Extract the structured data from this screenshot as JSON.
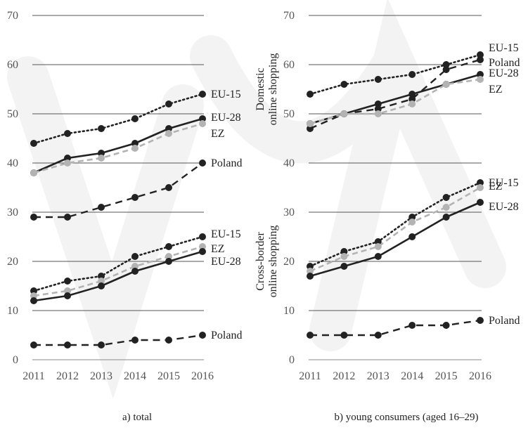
{
  "chart_data": [
    {
      "type": "line",
      "panel": "left",
      "caption": "a) total",
      "x": [
        2011,
        2012,
        2013,
        2014,
        2015,
        2016
      ],
      "ylim": [
        0,
        70
      ],
      "yticks": [
        0,
        10,
        20,
        30,
        40,
        50,
        60,
        70
      ],
      "grid": true,
      "group_labels": [],
      "series": [
        {
          "label": "EU-15",
          "group": "domestic",
          "style": "dotted",
          "values": [
            44,
            46,
            47,
            49,
            52,
            54
          ]
        },
        {
          "label": "EU-28",
          "group": "domestic",
          "style": "solid",
          "values": [
            38,
            41,
            42,
            44,
            47,
            49
          ]
        },
        {
          "label": "EZ",
          "group": "domestic",
          "style": "grey-dashed",
          "values": [
            38,
            40,
            41,
            43,
            46,
            48
          ]
        },
        {
          "label": "Poland",
          "group": "domestic",
          "style": "dashed",
          "values": [
            29,
            29,
            31,
            33,
            35,
            40
          ]
        },
        {
          "label": "EU-15",
          "group": "cross-border",
          "style": "dotted",
          "values": [
            14,
            16,
            17,
            21,
            23,
            25
          ]
        },
        {
          "label": "EZ",
          "group": "cross-border",
          "style": "grey-dashed",
          "values": [
            13,
            14,
            16,
            19,
            21,
            23
          ]
        },
        {
          "label": "EU-28",
          "group": "cross-border",
          "style": "solid",
          "values": [
            12,
            13,
            15,
            18,
            20,
            22
          ]
        },
        {
          "label": "Poland",
          "group": "cross-border",
          "style": "dashed",
          "values": [
            3,
            3,
            3,
            4,
            4,
            5
          ]
        }
      ]
    },
    {
      "type": "line",
      "panel": "right",
      "caption": "b) young consumers (aged 16–29)",
      "x": [
        2011,
        2012,
        2013,
        2014,
        2015,
        2016
      ],
      "ylim": [
        0,
        70
      ],
      "yticks": [
        0,
        10,
        20,
        30,
        40,
        50,
        60,
        70
      ],
      "grid": true,
      "group_labels": [
        "Domestic online shopping",
        "Cross-border online shopping"
      ],
      "series": [
        {
          "label": "EU-15",
          "group": "domestic",
          "style": "dotted",
          "values": [
            54,
            56,
            57,
            58,
            60,
            62
          ]
        },
        {
          "label": "Poland",
          "group": "domestic",
          "style": "dashed",
          "values": [
            47,
            50,
            51,
            53,
            59,
            61
          ]
        },
        {
          "label": "EU-28",
          "group": "domestic",
          "style": "solid",
          "values": [
            48,
            50,
            52,
            54,
            56,
            58
          ]
        },
        {
          "label": "EZ",
          "group": "domestic",
          "style": "grey-dashed",
          "values": [
            48,
            50,
            50,
            52,
            56,
            57
          ]
        },
        {
          "label": "EU-15",
          "group": "cross-border",
          "style": "dotted",
          "values": [
            19,
            22,
            24,
            29,
            33,
            36
          ]
        },
        {
          "label": "EZ",
          "group": "cross-border",
          "style": "grey-dashed",
          "values": [
            18,
            21,
            23,
            28,
            31,
            35
          ]
        },
        {
          "label": "EU-28",
          "group": "cross-border",
          "style": "solid",
          "values": [
            17,
            19,
            21,
            25,
            29,
            32
          ]
        },
        {
          "label": "Poland",
          "group": "cross-border",
          "style": "dashed",
          "values": [
            5,
            5,
            5,
            7,
            7,
            8
          ]
        }
      ]
    }
  ]
}
